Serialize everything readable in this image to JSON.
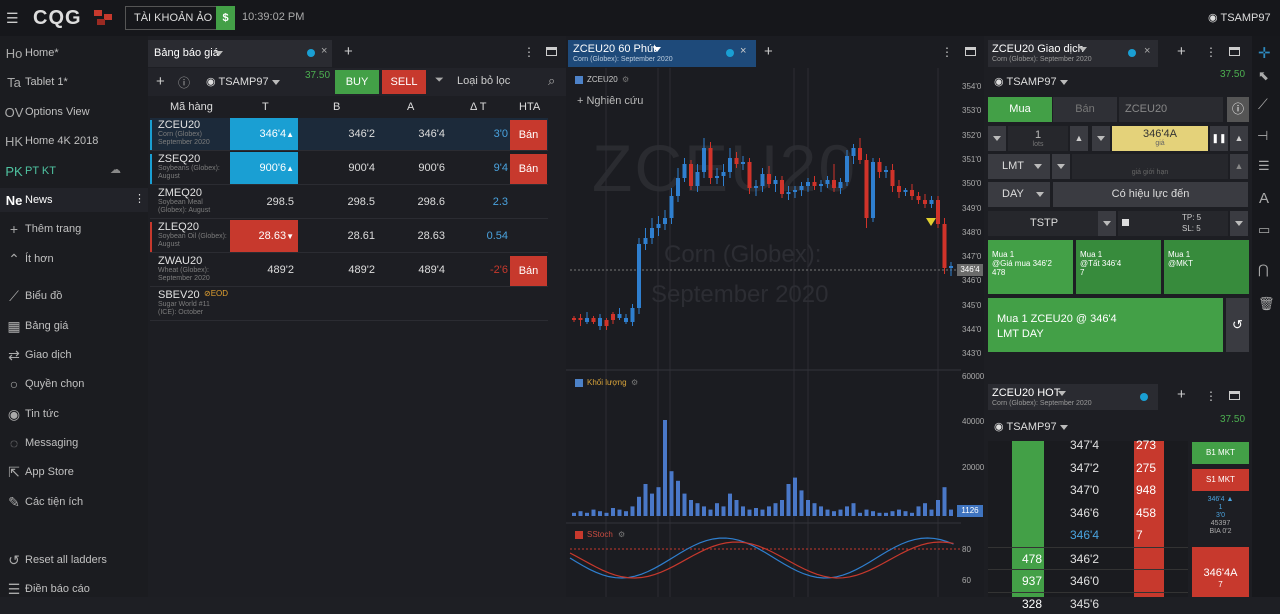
{
  "topbar": {
    "logo": "CQG",
    "account": "TÀI KHOẢN ẢO",
    "dollar": "$",
    "time": "10:39:02 PM",
    "user": "TSAMP97"
  },
  "sidebar": {
    "items": [
      {
        "abbr": "Ho",
        "label": "Home*"
      },
      {
        "abbr": "Ta",
        "label": "Tablet 1*"
      },
      {
        "abbr": "OV",
        "label": "Options View"
      },
      {
        "abbr": "HK",
        "label": "Home 4K 2018"
      },
      {
        "abbr": "PK",
        "label": "PT KT"
      },
      {
        "abbr": "Ne",
        "label": "News"
      },
      {
        "icon": "plus",
        "label": "Thêm trang"
      },
      {
        "icon": "chevron-up",
        "label": "Ít hơn"
      },
      {
        "icon": "chart",
        "label": "Biểu đồ"
      },
      {
        "icon": "grid",
        "label": "Bảng giá"
      },
      {
        "icon": "arrows",
        "label": "Giao dịch"
      },
      {
        "icon": "circle",
        "label": "Quyền chọn"
      },
      {
        "icon": "globe",
        "label": "Tin tức"
      },
      {
        "icon": "chat",
        "label": "Messaging"
      },
      {
        "icon": "external",
        "label": "App Store"
      },
      {
        "icon": "wrench",
        "label": "Các tiện ích"
      },
      {
        "icon": "reset",
        "label": "Reset all ladders"
      },
      {
        "icon": "list",
        "label": "Điền báo cáo"
      }
    ]
  },
  "quote": {
    "title": "Bảng báo giá",
    "user": "TSAMP97",
    "balance": "37.50",
    "buy": "BUY",
    "sell": "SELL",
    "filter": "Loại bỏ lọc",
    "headers": [
      "Mã hàng",
      "T",
      "B",
      "A",
      "Δ T",
      "HTA"
    ],
    "rows": [
      {
        "sym": "ZCEU20",
        "desc": "Corn (Globex) September 2020",
        "t": "346'4",
        "b": "346'2",
        "a": "346'4",
        "d": "3'0",
        "hta": "Bán",
        "tcolor": "#1a9fd3",
        "arrow": "▲"
      },
      {
        "sym": "ZSEQ20",
        "desc": "Soybeans (Globex): August",
        "t": "900'6",
        "b": "900'4",
        "a": "900'6",
        "d": "9'4",
        "hta": "Bán",
        "tcolor": "#1a9fd3",
        "arrow": "▲"
      },
      {
        "sym": "ZMEQ20",
        "desc": "Soybean Meal (Globex): August",
        "t": "298.5",
        "b": "298.5",
        "a": "298.6",
        "d": "2.3",
        "hta": "",
        "tcolor": "",
        "arrow": ""
      },
      {
        "sym": "ZLEQ20",
        "desc": "Soybean Oil (Globex): August",
        "t": "28.63",
        "b": "28.61",
        "a": "28.63",
        "d": "0.54",
        "hta": "",
        "tcolor": "#c7392d",
        "arrow": "▼"
      },
      {
        "sym": "ZWAU20",
        "desc": "Wheat (Globex): September 2020",
        "t": "489'2",
        "b": "489'2",
        "a": "489'4",
        "d": "-2'6",
        "hta": "Bán",
        "tcolor": "",
        "arrow": ""
      },
      {
        "sym": "SBEV20",
        "desc": "Sugar World #11 (ICE): October",
        "t": "",
        "b": "",
        "a": "",
        "d": "",
        "hta": "",
        "tcolor": "",
        "arrow": "",
        "tag": "⊘EOD"
      }
    ]
  },
  "chart": {
    "title": "ZCEU20 60 Phút",
    "subtitle": "Corn (Globex): September 2020",
    "symbol": "ZCEU20",
    "study": "Nghiên cứu",
    "wm1": "ZCEU20",
    "wm2": "Corn (Globex):",
    "wm3": "September 2020",
    "price_ticks": [
      "354'0",
      "353'0",
      "352'0",
      "351'0",
      "350'0",
      "349'0",
      "348'0",
      "347'0",
      "346'0",
      "345'0",
      "344'0",
      "343'0"
    ],
    "last": "346'4",
    "volume_label": "Khối lượng",
    "volume_ticks": [
      "60000",
      "40000",
      "20000"
    ],
    "volume_last": "1126",
    "stoch_label": "SStoch",
    "stoch_ticks": [
      "80",
      "60"
    ]
  },
  "trade": {
    "title": "ZCEU20 Giao dịch",
    "subtitle": "Corn (Globex): September 2020",
    "user": "TSAMP97",
    "balance": "37.50",
    "buy": "Mua",
    "sell": "Bán",
    "symbol": "ZCEU20",
    "qty": "1",
    "qty_label": "lots",
    "price": "346'4A",
    "price_label": "giá",
    "limit_label": "giá giới hạn",
    "type": "LMT",
    "tif": "DAY",
    "valid": "Có hiệu lực đến",
    "tstp": "TSTP",
    "tp": "TP: 5",
    "sl": "SL: 5",
    "quick": [
      {
        "l1": "Mua 1",
        "l2": "@Giá mua 346'2",
        "l3": "478"
      },
      {
        "l1": "Mua 1",
        "l2": "@Tất 346'4",
        "l3": "7"
      },
      {
        "l1": "Mua 1",
        "l2": "@MKT",
        "l3": ""
      }
    ],
    "summary1": "Mua 1 ZCEU20 @ 346'4",
    "summary2": "LMT DAY"
  },
  "hot": {
    "title": "ZCEU20 HOT",
    "subtitle": "Corn (Globex): September 2020",
    "user": "TSAMP97",
    "balance": "37.50",
    "rows": [
      {
        "bid": "",
        "price": "347'4",
        "ask": "273"
      },
      {
        "bid": "",
        "price": "347'2",
        "ask": "275"
      },
      {
        "bid": "",
        "price": "347'0",
        "ask": "948"
      },
      {
        "bid": "",
        "price": "346'6",
        "ask": "458"
      },
      {
        "bid": "",
        "price": "346'4",
        "ask": "7"
      },
      {
        "bid": "478",
        "price": "346'2",
        "ask": ""
      },
      {
        "bid": "937",
        "price": "346'0",
        "ask": ""
      },
      {
        "bid": "328",
        "price": "345'6",
        "ask": ""
      }
    ],
    "b1": "B1 MKT",
    "s1": "S1 MKT",
    "info1": "346'4 ▲",
    "info2": "1",
    "info3": "3'0",
    "info4": "45397",
    "info5": "BIA 0'2",
    "askbtn1": "346'4A",
    "askbtn2": "7"
  },
  "colors": {
    "green": "#43a047",
    "red": "#c7392d",
    "blue": "#1a9fd3",
    "yellow": "#e4d27a"
  }
}
